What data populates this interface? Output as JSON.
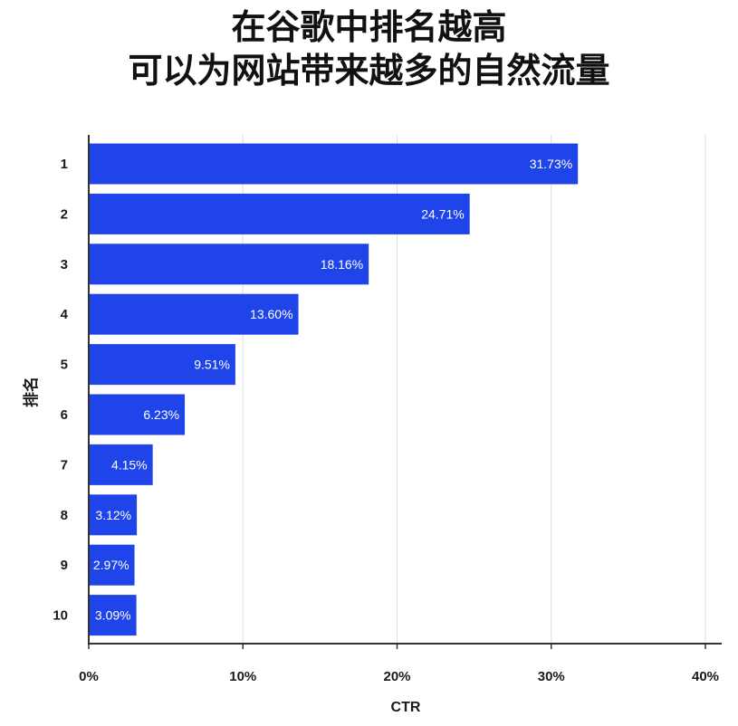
{
  "chart_data": {
    "type": "bar",
    "orientation": "horizontal",
    "title_lines": [
      "在谷歌中排名越高",
      "可以为网站带来越多的自然流量"
    ],
    "xlabel": "CTR",
    "ylabel": "排名",
    "categories": [
      "1",
      "2",
      "3",
      "4",
      "5",
      "6",
      "7",
      "8",
      "9",
      "10"
    ],
    "values": [
      31.73,
      24.71,
      18.16,
      13.6,
      9.51,
      6.23,
      4.15,
      3.12,
      2.97,
      3.09
    ],
    "value_labels": [
      "31.73%",
      "24.71%",
      "18.16%",
      "13.60%",
      "9.51%",
      "6.23%",
      "4.15%",
      "3.12%",
      "2.97%",
      "3.09%"
    ],
    "xlim": [
      0,
      40
    ],
    "xticks": [
      0,
      10,
      20,
      30,
      40
    ],
    "xtick_labels": [
      "0%",
      "10%",
      "20%",
      "30%",
      "40%"
    ],
    "grid": "vertical",
    "bar_color": "#1f45ea"
  }
}
